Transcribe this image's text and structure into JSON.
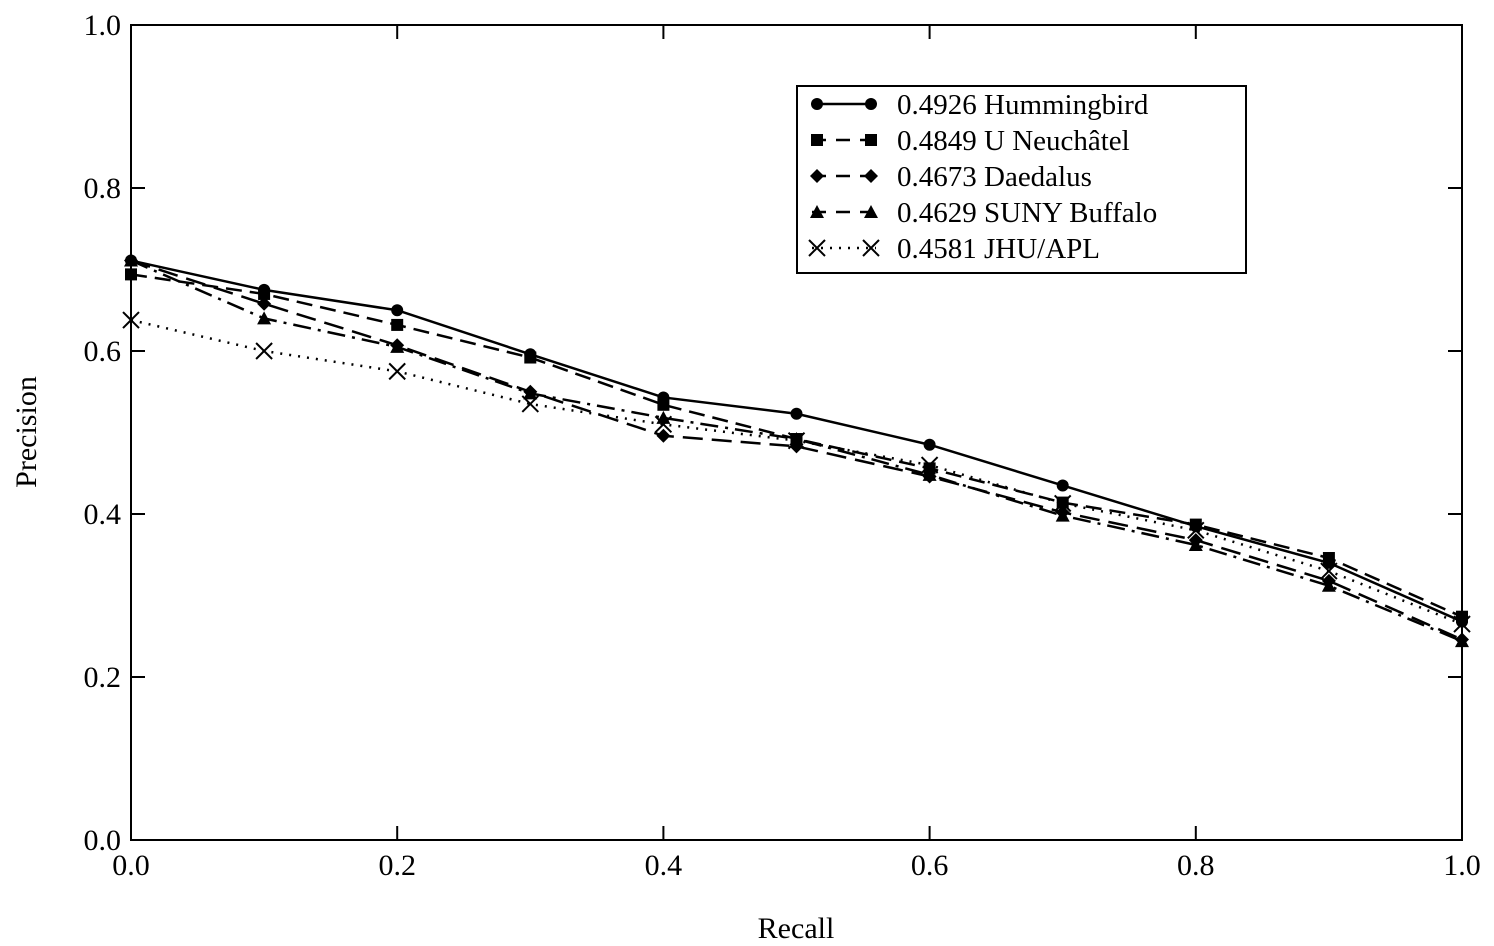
{
  "chart_data": {
    "type": "line",
    "xlabel": "Recall",
    "ylabel": "Precision",
    "xlim": [
      0.0,
      1.0
    ],
    "ylim": [
      0.0,
      1.0
    ],
    "xticks": [
      "0.0",
      "0.2",
      "0.4",
      "0.6",
      "0.8",
      "1.0"
    ],
    "yticks": [
      "0.0",
      "0.2",
      "0.4",
      "0.6",
      "0.8",
      "1.0"
    ],
    "grid": false,
    "legend_position": "top-right",
    "x": [
      0.0,
      0.1,
      0.2,
      0.3,
      0.4,
      0.5,
      0.6,
      0.7,
      0.8,
      0.9,
      1.0
    ],
    "series": [
      {
        "name": "0.4926 Hummingbird",
        "marker": "circle",
        "line": "solid",
        "values": [
          0.711,
          0.675,
          0.65,
          0.596,
          0.543,
          0.523,
          0.485,
          0.435,
          0.385,
          0.34,
          0.268
        ]
      },
      {
        "name": "0.4849 U Neuchâtel",
        "marker": "square",
        "line": "dashed",
        "values": [
          0.694,
          0.67,
          0.632,
          0.592,
          0.534,
          0.492,
          0.456,
          0.414,
          0.387,
          0.346,
          0.274
        ]
      },
      {
        "name": "0.4673 Daedalus",
        "marker": "diamond",
        "line": "long-dash",
        "values": [
          0.711,
          0.658,
          0.607,
          0.55,
          0.496,
          0.483,
          0.446,
          0.402,
          0.368,
          0.318,
          0.246
        ]
      },
      {
        "name": "0.4629 SUNY Buffalo",
        "marker": "triangle",
        "line": "dash-dot",
        "values": [
          0.711,
          0.64,
          0.605,
          0.548,
          0.518,
          0.492,
          0.448,
          0.398,
          0.362,
          0.312,
          0.244
        ]
      },
      {
        "name": "0.4581 JHU/APL",
        "marker": "cross",
        "line": "dotted",
        "values": [
          0.638,
          0.6,
          0.575,
          0.535,
          0.51,
          0.49,
          0.46,
          0.413,
          0.38,
          0.33,
          0.265
        ]
      }
    ]
  }
}
